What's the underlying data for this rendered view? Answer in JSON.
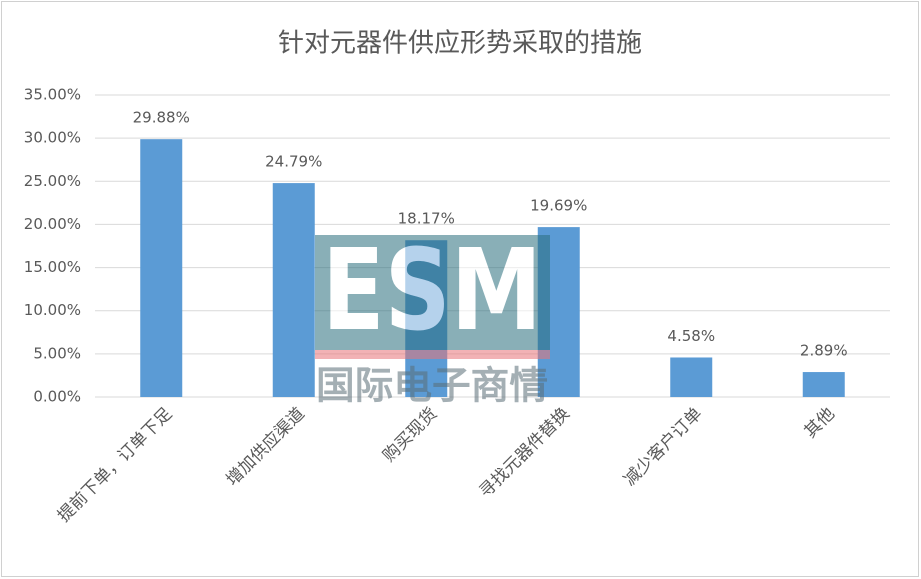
{
  "chart_data": {
    "type": "bar",
    "title": "针对元器件供应形势采取的措施",
    "categories": [
      "提前下单，订单下足",
      "增加供应渠道",
      "购买现货",
      "寻找元器件替换",
      "减少客户订单",
      "其他"
    ],
    "values": [
      29.88,
      24.79,
      18.17,
      19.69,
      4.58,
      2.89
    ],
    "value_labels": [
      "29.88%",
      "24.79%",
      "18.17%",
      "19.69%",
      "4.58%",
      "2.89%"
    ],
    "color": "#5b9bd5",
    "ylim": [
      0,
      35
    ],
    "yticks": [
      {
        "value": 0,
        "label": "0.00%"
      },
      {
        "value": 5,
        "label": "5.00%"
      },
      {
        "value": 10,
        "label": "10.00%"
      },
      {
        "value": 15,
        "label": "15.00%"
      },
      {
        "value": 20,
        "label": "20.00%"
      },
      {
        "value": 25,
        "label": "25.00%"
      },
      {
        "value": 30,
        "label": "30.00%"
      },
      {
        "value": 35,
        "label": "35.00%"
      }
    ],
    "grid": true,
    "watermark": {
      "logo": "ESM",
      "text": "国际电子商情"
    }
  }
}
